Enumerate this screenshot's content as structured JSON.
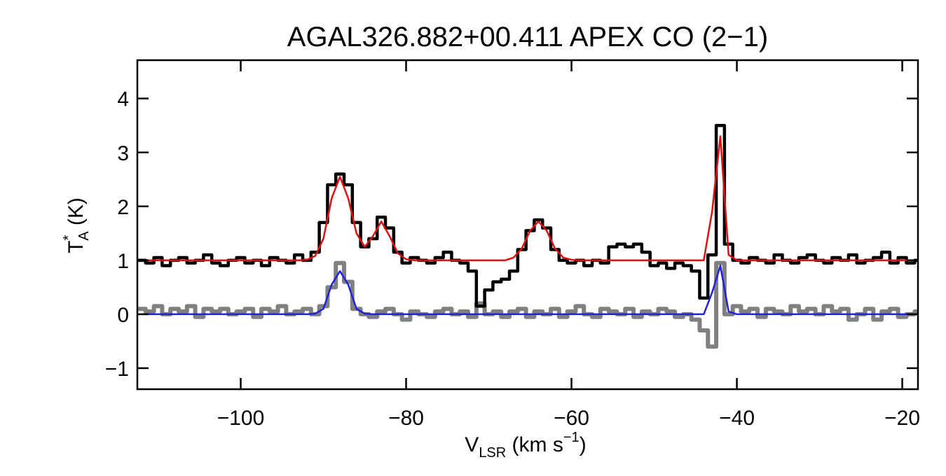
{
  "chart_data": {
    "type": "line",
    "title": "AGAL326.882+00.411   APEX CO (2−1)",
    "xlabel": [
      {
        "text": "V"
      },
      {
        "text": "LSR",
        "pos": "sub"
      },
      {
        "text": " (km s"
      },
      {
        "text": "−1",
        "pos": "sup"
      },
      {
        "text": ")"
      }
    ],
    "ylabel": [
      {
        "text": "T"
      },
      {
        "text": "*",
        "pos": "sup"
      },
      {
        "text": "A",
        "pos": "sub"
      },
      {
        "text": " (K)"
      }
    ],
    "xlim": [
      -112.5,
      -18.1
    ],
    "ylim": [
      -1.39,
      4.71
    ],
    "xticks": [
      {
        "value": -100,
        "label": "−100"
      },
      {
        "value": -80,
        "label": "−80"
      },
      {
        "value": -60,
        "label": "−60"
      },
      {
        "value": -40,
        "label": "−40"
      },
      {
        "value": -20,
        "label": "−20"
      }
    ],
    "yticks": [
      {
        "value": -1,
        "label": "−1"
      },
      0,
      1,
      2,
      3,
      4
    ],
    "grid": false,
    "x": [
      -112,
      -111,
      -110,
      -109,
      -108,
      -107,
      -106,
      -105,
      -104,
      -103,
      -102,
      -101,
      -100,
      -99,
      -98,
      -97,
      -96,
      -95,
      -94,
      -93,
      -92,
      -91,
      -90,
      -89,
      -88,
      -87,
      -86,
      -85,
      -84,
      -83,
      -82,
      -81,
      -80,
      -79,
      -78,
      -77,
      -76,
      -75,
      -74,
      -73,
      -72,
      -71,
      -70,
      -69,
      -68,
      -67,
      -66,
      -65,
      -64,
      -63,
      -62,
      -61,
      -60,
      -59,
      -58,
      -57,
      -56,
      -55,
      -54,
      -53,
      -52,
      -51,
      -50,
      -49,
      -48,
      -47,
      -46,
      -45,
      -44,
      -43,
      -42,
      -41,
      -40,
      -39,
      -38,
      -37,
      -36,
      -35,
      -34,
      -33,
      -32,
      -31,
      -30,
      -29,
      -28,
      -27,
      -26,
      -25,
      -24,
      -23,
      -22,
      -21,
      -20,
      -19,
      -18
    ],
    "series": [
      {
        "color": "#808080",
        "width": 6,
        "drawstyle": "steps",
        "values": [
          0.1,
          0.05,
          0.15,
          0.0,
          0.1,
          0.05,
          0.15,
          -0.05,
          0.1,
          0.05,
          0.1,
          0.0,
          0.05,
          0.1,
          -0.05,
          0.1,
          0.05,
          0.15,
          0.0,
          0.05,
          0.1,
          0.0,
          0.15,
          0.5,
          0.95,
          0.6,
          0.1,
          0.0,
          -0.05,
          0.05,
          0.1,
          0.0,
          -0.1,
          0.05,
          0.0,
          -0.05,
          0.05,
          0.1,
          0.0,
          0.05,
          -0.05,
          0.2,
          0.0,
          0.05,
          -0.05,
          0.05,
          0.1,
          -0.05,
          0.05,
          0.0,
          0.1,
          -0.05,
          0.05,
          0.15,
          0.0,
          -0.05,
          0.1,
          0.05,
          0.0,
          0.1,
          -0.05,
          0.05,
          0.0,
          0.1,
          0.05,
          -0.05,
          0.0,
          -0.1,
          -0.3,
          -0.6,
          0.95,
          0.0,
          0.15,
          0.05,
          0.1,
          -0.05,
          0.1,
          0.05,
          0.0,
          0.15,
          0.05,
          0.1,
          0.0,
          0.15,
          0.05,
          0.1,
          -0.1,
          0.0,
          0.1,
          -0.1,
          0.05,
          0.1,
          -0.05,
          0.0,
          0.05
        ]
      },
      {
        "color": "#000000",
        "width": 4.5,
        "drawstyle": "steps",
        "values": [
          1.0,
          0.95,
          1.05,
          0.9,
          1.0,
          1.05,
          0.95,
          1.0,
          1.1,
          0.95,
          0.9,
          1.0,
          1.05,
          0.95,
          1.0,
          0.9,
          1.05,
          1.0,
          0.95,
          1.1,
          1.0,
          1.15,
          1.7,
          2.4,
          2.6,
          2.4,
          1.7,
          1.25,
          1.4,
          1.8,
          1.6,
          1.15,
          0.95,
          1.05,
          1.0,
          0.95,
          1.05,
          1.15,
          1.0,
          0.95,
          0.8,
          0.15,
          0.45,
          0.6,
          0.65,
          0.8,
          1.2,
          1.55,
          1.75,
          1.6,
          1.2,
          1.0,
          0.95,
          1.0,
          0.9,
          1.0,
          0.95,
          1.25,
          1.3,
          1.25,
          1.3,
          1.15,
          0.9,
          0.95,
          0.85,
          0.95,
          0.9,
          0.8,
          0.3,
          1.1,
          3.5,
          1.3,
          1.0,
          0.95,
          1.05,
          1.0,
          0.95,
          1.1,
          1.0,
          0.95,
          1.05,
          1.1,
          1.0,
          0.95,
          1.05,
          1.0,
          1.1,
          0.95,
          1.0,
          1.05,
          1.15,
          0.95,
          1.05,
          0.95,
          1.0
        ]
      },
      {
        "color": "#2020e0",
        "width": 2.5,
        "drawstyle": "line",
        "values": [
          0,
          0,
          0,
          0,
          0,
          0,
          0,
          0,
          0,
          0,
          0,
          0,
          0,
          0,
          0,
          0,
          0,
          0,
          0,
          0,
          0,
          0.01,
          0.1,
          0.55,
          0.8,
          0.55,
          0.1,
          0.01,
          0,
          0,
          0,
          0,
          0,
          0,
          0,
          0,
          0,
          0,
          0,
          0,
          0,
          0,
          0,
          0,
          0,
          0,
          0,
          0,
          0,
          0,
          0,
          0,
          0,
          0,
          0,
          0,
          0,
          0,
          0,
          0,
          0,
          0,
          0,
          0,
          0,
          0,
          0,
          0,
          0,
          0.4,
          0.9,
          0.05,
          0,
          0,
          0,
          0,
          0,
          0,
          0,
          0,
          0,
          0,
          0,
          0,
          0,
          0,
          0,
          0,
          0,
          0,
          0,
          0,
          0,
          0,
          0
        ]
      },
      {
        "color": "#e01010",
        "width": 2.5,
        "drawstyle": "line",
        "values": [
          1,
          1,
          1,
          1,
          1,
          1,
          1,
          1,
          1,
          1,
          1,
          1,
          1,
          1,
          1,
          1,
          1,
          1,
          1,
          1,
          1.01,
          1.08,
          1.4,
          2.15,
          2.55,
          2.15,
          1.5,
          1.25,
          1.45,
          1.72,
          1.45,
          1.13,
          1.02,
          1,
          1,
          1,
          1,
          1,
          1,
          1,
          1,
          1,
          1,
          1,
          1,
          1.05,
          1.22,
          1.55,
          1.72,
          1.55,
          1.22,
          1.05,
          1.01,
          1,
          1,
          1,
          1,
          1,
          1,
          1,
          1,
          1,
          1,
          1,
          1,
          1,
          1,
          1,
          1,
          1.9,
          3.3,
          1.1,
          1,
          1,
          1,
          1,
          1,
          1,
          1,
          1,
          1,
          1,
          1,
          1,
          1,
          1,
          1,
          1,
          1,
          1,
          1,
          1,
          1,
          1,
          1
        ]
      }
    ]
  }
}
